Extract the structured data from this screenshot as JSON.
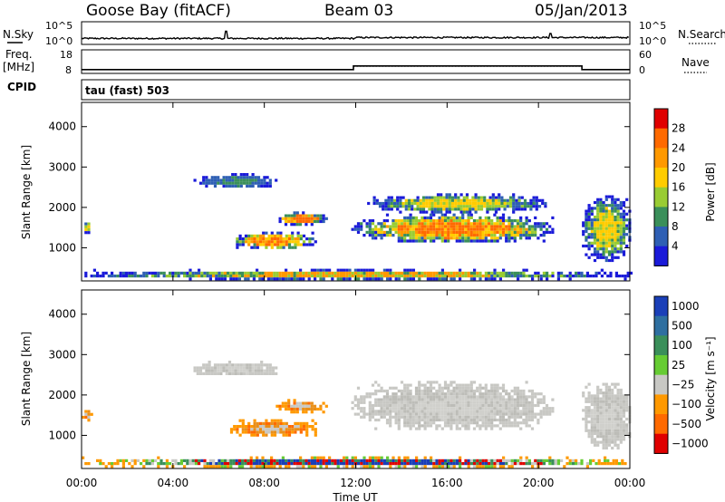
{
  "header": {
    "station": "Goose Bay (fitACF)",
    "beam": "Beam 03",
    "date": "05/Jan/2013"
  },
  "params": {
    "nsky_label": "N.Sky",
    "nsearch_label": "N.Search",
    "nsky_ticks": [
      "10^5",
      "10^0"
    ],
    "nsearch_ticks": [
      "10^5",
      "10^0"
    ],
    "freq_label": "Freq.",
    "freq_unit": "[MHz]",
    "freq_ticks": [
      "18",
      "8"
    ],
    "nave_label": "Nave",
    "nave_ticks": [
      "60",
      "0"
    ],
    "cpid_label": "CPID",
    "cpid_value": "tau (fast) 503"
  },
  "chart_data": [
    {
      "type": "line",
      "name": "noise-panel",
      "series": [
        {
          "name": "N.Sky",
          "style": "solid",
          "x_hours": [
            0,
            6.3,
            6.32,
            6.36,
            12,
            24
          ],
          "log10_values": [
            0.5,
            0.5,
            3.0,
            0.5,
            0.8,
            0.7
          ]
        },
        {
          "name": "N.Search",
          "style": "dotted"
        }
      ]
    },
    {
      "type": "line",
      "name": "frequency-nave-panel",
      "series": [
        {
          "name": "Freq.",
          "style": "solid",
          "x_hours": [
            0,
            11.9,
            11.9,
            21.9,
            21.9,
            24
          ],
          "y_mhz": [
            8.6,
            8.6,
            10.6,
            10.6,
            8.6,
            8.6
          ]
        },
        {
          "name": "Nave",
          "style": "dotted",
          "x_hours": [
            11.9,
            21.9
          ],
          "y": [
            15,
            15
          ]
        }
      ]
    },
    {
      "type": "heatmap",
      "name": "power-panel",
      "ylabel": "Slant Range [km]",
      "yticks": [
        1000,
        2000,
        3000,
        4000
      ],
      "ylim": [
        180,
        4600
      ],
      "xlim_hours": [
        0,
        24
      ],
      "colorbar": {
        "label": "Power [dB]",
        "ticks": [
          "28",
          "24",
          "20",
          "16",
          "12",
          "8",
          "4"
        ],
        "colors": [
          "#e00000",
          "#ff6a00",
          "#ff9900",
          "#ffcc00",
          "#99cc33",
          "#3a8f5a",
          "#2e5fb4",
          "#1a1ad9"
        ]
      },
      "patches": [
        {
          "x_hours": [
            0,
            24
          ],
          "range_km": [
            250,
            480
          ],
          "level": "low-mixed"
        },
        {
          "x_hours": [
            4.9,
            8.5
          ],
          "range_km": [
            2500,
            2850
          ],
          "level": "low"
        },
        {
          "x_hours": [
            6.5,
            10.2
          ],
          "range_km": [
            1000,
            1400
          ],
          "level": "high"
        },
        {
          "x_hours": [
            8.5,
            10.7
          ],
          "range_km": [
            1600,
            1900
          ],
          "level": "high"
        },
        {
          "x_hours": [
            11.8,
            20.6
          ],
          "range_km": [
            1150,
            1850
          ],
          "level": "high"
        },
        {
          "x_hours": [
            12.5,
            20.3
          ],
          "range_km": [
            1900,
            2350
          ],
          "level": "medium"
        },
        {
          "x_hours": [
            21.9,
            24
          ],
          "range_km": [
            700,
            2300
          ],
          "level": "medium"
        },
        {
          "x_hours": [
            0,
            0.4
          ],
          "range_km": [
            1400,
            1700
          ],
          "level": "medium"
        }
      ]
    },
    {
      "type": "heatmap",
      "name": "velocity-panel",
      "ylabel": "Slant Range [km]",
      "yticks": [
        1000,
        2000,
        3000,
        4000
      ],
      "ylim": [
        180,
        4600
      ],
      "xlim_hours": [
        0,
        24
      ],
      "xlabel": "Time UT",
      "xticks": [
        "00:00",
        "04:00",
        "08:00",
        "12:00",
        "16:00",
        "20:00",
        "00:00"
      ],
      "colorbar": {
        "label": "Velocity [m s⁻¹]",
        "ticks": [
          "1000",
          "500",
          "100",
          "25",
          "−25",
          "−100",
          "−500",
          "−1000"
        ],
        "colors": [
          "#1a3fb8",
          "#2e6fa0",
          "#3a8f5a",
          "#66cc33",
          "#c8c8c4",
          "#ff9900",
          "#ff6a00",
          "#e00000"
        ]
      },
      "patches": [
        {
          "x_hours": [
            0,
            24
          ],
          "range_km": [
            250,
            480
          ],
          "level": "mixed"
        },
        {
          "x_hours": [
            4.9,
            8.5
          ],
          "range_km": [
            2500,
            2850
          ],
          "level": "grey"
        },
        {
          "x_hours": [
            6.5,
            10.2
          ],
          "range_km": [
            1000,
            1400
          ],
          "level": "negative"
        },
        {
          "x_hours": [
            8.5,
            10.7
          ],
          "range_km": [
            1600,
            1900
          ],
          "level": "negative"
        },
        {
          "x_hours": [
            11.8,
            20.6
          ],
          "range_km": [
            1150,
            2350
          ],
          "level": "grey"
        },
        {
          "x_hours": [
            21.9,
            24
          ],
          "range_km": [
            700,
            2300
          ],
          "level": "grey"
        },
        {
          "x_hours": [
            0,
            0.4
          ],
          "range_km": [
            1400,
            1700
          ],
          "level": "negative"
        }
      ]
    }
  ]
}
